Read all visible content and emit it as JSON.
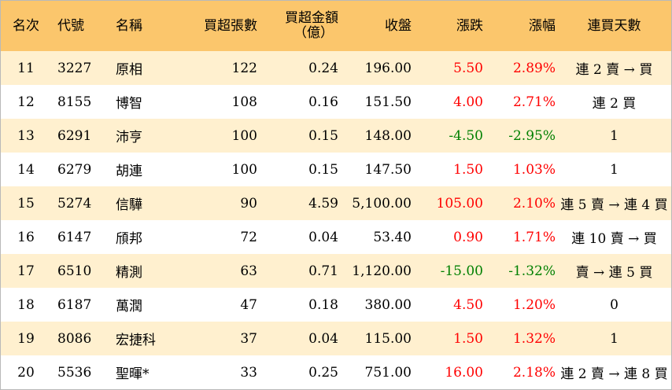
{
  "headers": {
    "rank": "名次",
    "code": "代號",
    "name": "名稱",
    "lots": "買超張數",
    "amount_line1": "買超金額",
    "amount_line2": "（億）",
    "close": "收盤",
    "change": "漲跌",
    "pct": "漲幅",
    "streak": "連買天數"
  },
  "colors": {
    "header_bg": "#fbc66c",
    "stripe_bg": "#fff0cf",
    "up": "#ff0000",
    "down": "#008000"
  },
  "rows": [
    {
      "rank": "11",
      "code": "3227",
      "name": "原相",
      "lots": "122",
      "amount": "0.24",
      "close": "196.00",
      "change": "5.50",
      "pct": "2.89%",
      "trend": "up",
      "streak": "連 2 賣 → 買"
    },
    {
      "rank": "12",
      "code": "8155",
      "name": "博智",
      "lots": "108",
      "amount": "0.16",
      "close": "151.50",
      "change": "4.00",
      "pct": "2.71%",
      "trend": "up",
      "streak": "連 2 買"
    },
    {
      "rank": "13",
      "code": "6291",
      "name": "沛亨",
      "lots": "100",
      "amount": "0.15",
      "close": "148.00",
      "change": "-4.50",
      "pct": "-2.95%",
      "trend": "down",
      "streak": "1"
    },
    {
      "rank": "14",
      "code": "6279",
      "name": "胡連",
      "lots": "100",
      "amount": "0.15",
      "close": "147.50",
      "change": "1.50",
      "pct": "1.03%",
      "trend": "up",
      "streak": "1"
    },
    {
      "rank": "15",
      "code": "5274",
      "name": "信驊",
      "lots": "90",
      "amount": "4.59",
      "close": "5,100.00",
      "change": "105.00",
      "pct": "2.10%",
      "trend": "up",
      "streak": "連 5 賣 → 連 4 買"
    },
    {
      "rank": "16",
      "code": "6147",
      "name": "頎邦",
      "lots": "72",
      "amount": "0.04",
      "close": "53.40",
      "change": "0.90",
      "pct": "1.71%",
      "trend": "up",
      "streak": "連 10 賣 → 買"
    },
    {
      "rank": "17",
      "code": "6510",
      "name": "精測",
      "lots": "63",
      "amount": "0.71",
      "close": "1,120.00",
      "change": "-15.00",
      "pct": "-1.32%",
      "trend": "down",
      "streak": "賣 → 連 5 買"
    },
    {
      "rank": "18",
      "code": "6187",
      "name": "萬潤",
      "lots": "47",
      "amount": "0.18",
      "close": "380.00",
      "change": "4.50",
      "pct": "1.20%",
      "trend": "up",
      "streak": "0"
    },
    {
      "rank": "19",
      "code": "8086",
      "name": "宏捷科",
      "lots": "37",
      "amount": "0.04",
      "close": "115.00",
      "change": "1.50",
      "pct": "1.32%",
      "trend": "up",
      "streak": "1"
    },
    {
      "rank": "20",
      "code": "5536",
      "name": "聖暉*",
      "lots": "33",
      "amount": "0.25",
      "close": "751.00",
      "change": "16.00",
      "pct": "2.18%",
      "trend": "up",
      "streak": "連 2 賣 → 連 8 買"
    }
  ]
}
